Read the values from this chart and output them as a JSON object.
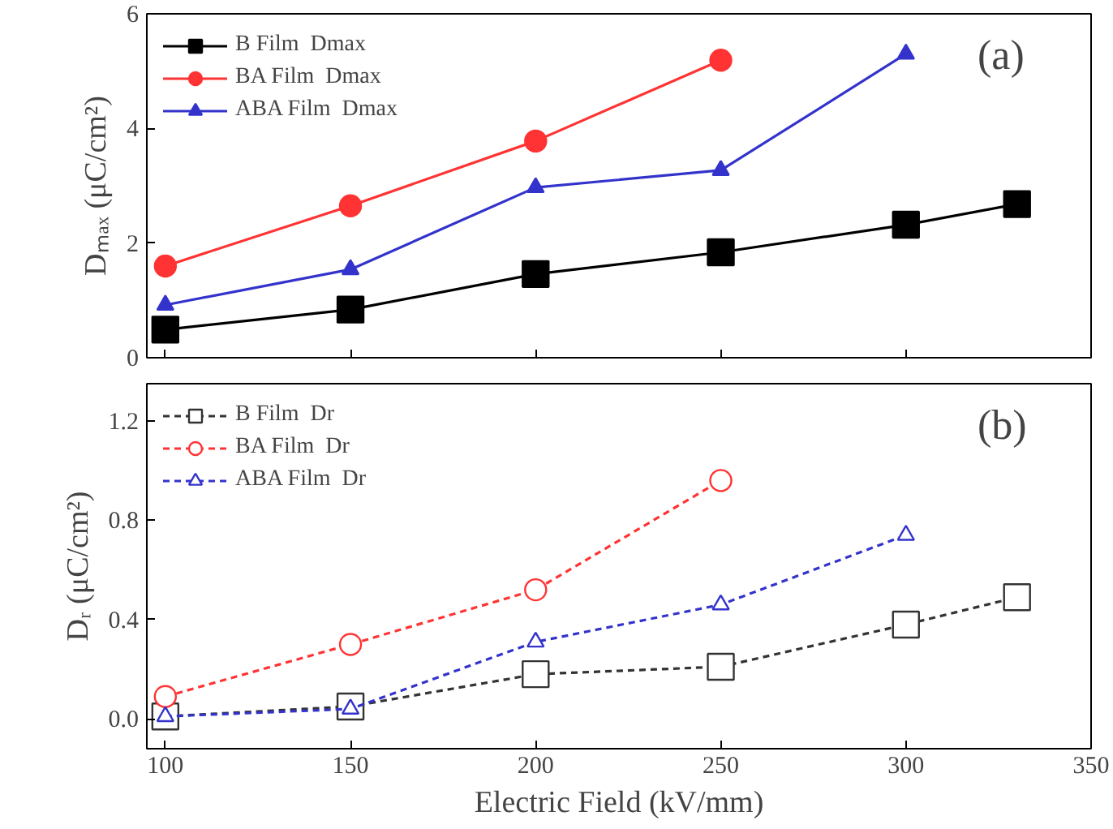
{
  "chart_data": [
    {
      "type": "line",
      "ylabel": "Dₘₐₓ (μC/cm²)",
      "annotations": [
        "(a)"
      ],
      "x": [
        100,
        150,
        200,
        250,
        300,
        330
      ],
      "xlim": [
        95,
        350
      ],
      "xticks": [
        100,
        150,
        200,
        250,
        300,
        350
      ],
      "ylim": [
        0,
        6
      ],
      "yticks": [
        0,
        2,
        4,
        6
      ],
      "tick_labels": "y",
      "legend": "top left",
      "line_style": "solid",
      "series": [
        {
          "name": "B Film  Dmax",
          "color": "#000000",
          "marker": "square",
          "values": [
            0.49,
            0.84,
            1.46,
            1.84,
            2.32,
            2.68
          ]
        },
        {
          "name": "BA Film  Dmax",
          "color": "#ff3333",
          "marker": "circle",
          "values": [
            1.6,
            2.65,
            3.78,
            5.19,
            null,
            null
          ]
        },
        {
          "name": "ABA Film  Dmax",
          "color": "#3333cc",
          "marker": "triangle",
          "values": [
            0.92,
            1.54,
            2.97,
            3.27,
            5.3,
            null
          ]
        }
      ]
    },
    {
      "type": "line",
      "ylabel": "Dᵣ (μC/cm²)",
      "xlabel": "Electric Field (kV/mm)",
      "annotations": [
        "(b)"
      ],
      "x": [
        100,
        150,
        200,
        250,
        300,
        330
      ],
      "xlim": [
        95,
        350
      ],
      "xticks": [
        100,
        150,
        200,
        250,
        300,
        350
      ],
      "ylim": [
        -0.12,
        1.35
      ],
      "yticks": [
        {
          "value": 0,
          "label": "0.0"
        },
        0.4,
        0.8,
        1.2
      ],
      "legend": "top left",
      "line_style": "dashed",
      "series": [
        {
          "name": "B Film  Dr",
          "color": "#333333",
          "marker": "square",
          "values": [
            0.01,
            0.05,
            0.18,
            0.21,
            0.38,
            0.49
          ]
        },
        {
          "name": "BA Film  Dr",
          "color": "#ff3333",
          "marker": "circle",
          "values": [
            0.09,
            0.3,
            0.52,
            0.96,
            null,
            null
          ]
        },
        {
          "name": "ABA Film  Dr",
          "color": "#3333cc",
          "marker": "triangle",
          "values": [
            0.01,
            0.04,
            0.31,
            0.46,
            0.74,
            null
          ]
        }
      ]
    }
  ]
}
